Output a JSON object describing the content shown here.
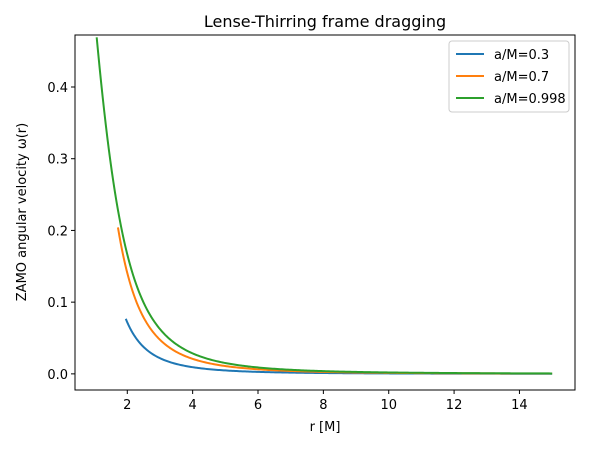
{
  "chart_data": {
    "type": "line",
    "title": "Lense-Thirring frame dragging",
    "xlabel": "r [M]",
    "ylabel": "ZAMO angular velocity ω(r)",
    "xlim": [
      0.4,
      15.7
    ],
    "ylim": [
      -0.0225,
      0.4725
    ],
    "xticks": [
      2,
      4,
      6,
      8,
      10,
      12,
      14
    ],
    "yticks": [
      0.0,
      0.1,
      0.2,
      0.3,
      0.4
    ],
    "xtick_labels": [
      "2",
      "4",
      "6",
      "8",
      "10",
      "12",
      "14"
    ],
    "ytick_labels": [
      "0.0",
      "0.1",
      "0.2",
      "0.3",
      "0.4"
    ],
    "grid": false,
    "legend_position": "top-right",
    "r_max": 15,
    "series": [
      {
        "name": "a/M=0.3",
        "spin": 0.3,
        "color": "#1f77b4"
      },
      {
        "name": "a/M=0.7",
        "spin": 0.7,
        "color": "#ff7f0e"
      },
      {
        "name": "a/M=0.998",
        "spin": 0.998,
        "color": "#2ca02c"
      }
    ]
  }
}
